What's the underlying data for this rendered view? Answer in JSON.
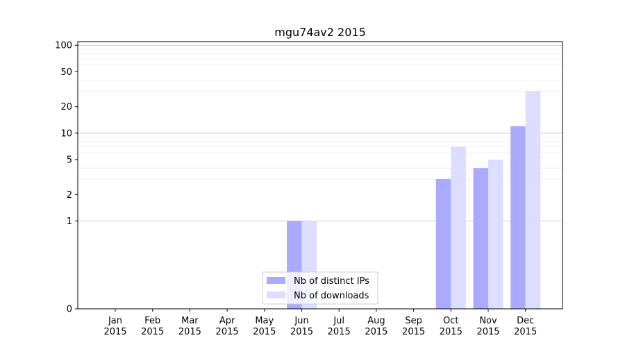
{
  "chart_data": {
    "type": "bar",
    "title": "mgu74av2 2015",
    "xlabel": "",
    "ylabel": "",
    "categories": [
      [
        "Jan",
        "2015"
      ],
      [
        "Feb",
        "2015"
      ],
      [
        "Mar",
        "2015"
      ],
      [
        "Apr",
        "2015"
      ],
      [
        "May",
        "2015"
      ],
      [
        "Jun",
        "2015"
      ],
      [
        "Jul",
        "2015"
      ],
      [
        "Aug",
        "2015"
      ],
      [
        "Sep",
        "2015"
      ],
      [
        "Oct",
        "2015"
      ],
      [
        "Nov",
        "2015"
      ],
      [
        "Dec",
        "2015"
      ]
    ],
    "series": [
      {
        "name": "Nb of distinct IPs",
        "color": "#aaaaff",
        "values": [
          0,
          0,
          0,
          0,
          0,
          1,
          0,
          0,
          0,
          3,
          4,
          12
        ]
      },
      {
        "name": "Nb of downloads",
        "color": "#ddddff",
        "values": [
          0,
          0,
          0,
          0,
          0,
          1,
          0,
          0,
          0,
          7,
          5,
          30
        ]
      }
    ],
    "y_scale": "symlog",
    "ylim": [
      0,
      110
    ],
    "y_ticks": [
      0,
      1,
      2,
      5,
      10,
      20,
      50,
      100
    ],
    "grid": true,
    "legend_position": "lower-center"
  }
}
